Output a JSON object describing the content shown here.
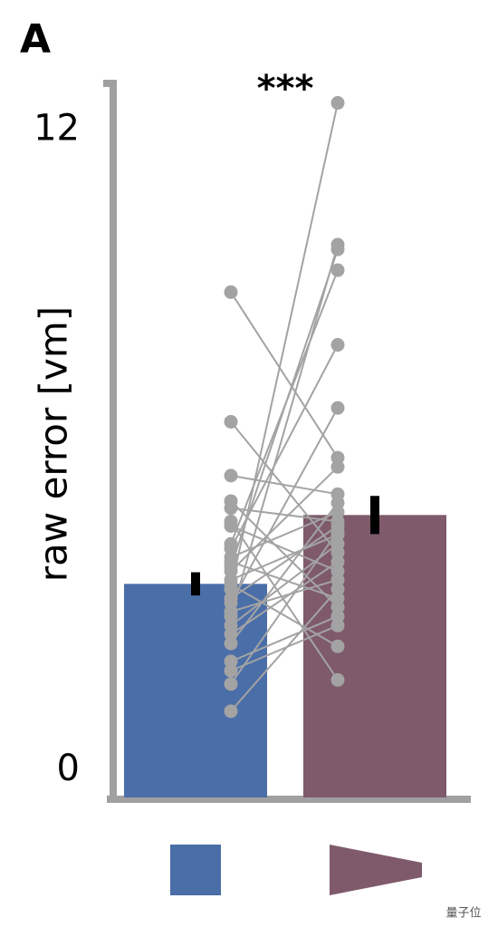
{
  "chart_data": {
    "type": "bar",
    "panel_label": "A",
    "ylabel": "raw error [vm]",
    "annotation": "***",
    "watermark": "量子位",
    "categories": [
      null,
      null
    ],
    "series": [
      {
        "colors": [
          "#4a6ea8",
          "#7f5a6b"
        ],
        "values": [
          3.69,
          4.88
        ],
        "errors": [
          0.2,
          0.33
        ]
      }
    ],
    "paired": {
      "color": "#a3a3a3",
      "before": [
        8.73,
        6.49,
        5.56,
        5.12,
        5.0,
        4.77,
        4.69,
        4.38,
        4.3,
        4.15,
        4.07,
        3.99,
        3.91,
        3.76,
        3.68,
        3.6,
        3.44,
        3.36,
        3.21,
        3.13,
        2.97,
        2.82,
        2.66,
        2.35,
        2.19,
        1.96,
        1.49
      ],
      "after": [
        5.87,
        4.23,
        5.24,
        3.29,
        4.77,
        2.03,
        3.91,
        9.11,
        7.82,
        4.93,
        3.44,
        9.47,
        5.71,
        4.54,
        2.61,
        12.0,
        4.69,
        6.73,
        3.76,
        9.55,
        4.38,
        4.07,
        5.09,
        3.13,
        2.97,
        4.6,
        3.6
      ]
    },
    "ylim": [
      0,
      12.4
    ],
    "yticks": [
      0,
      12
    ]
  }
}
